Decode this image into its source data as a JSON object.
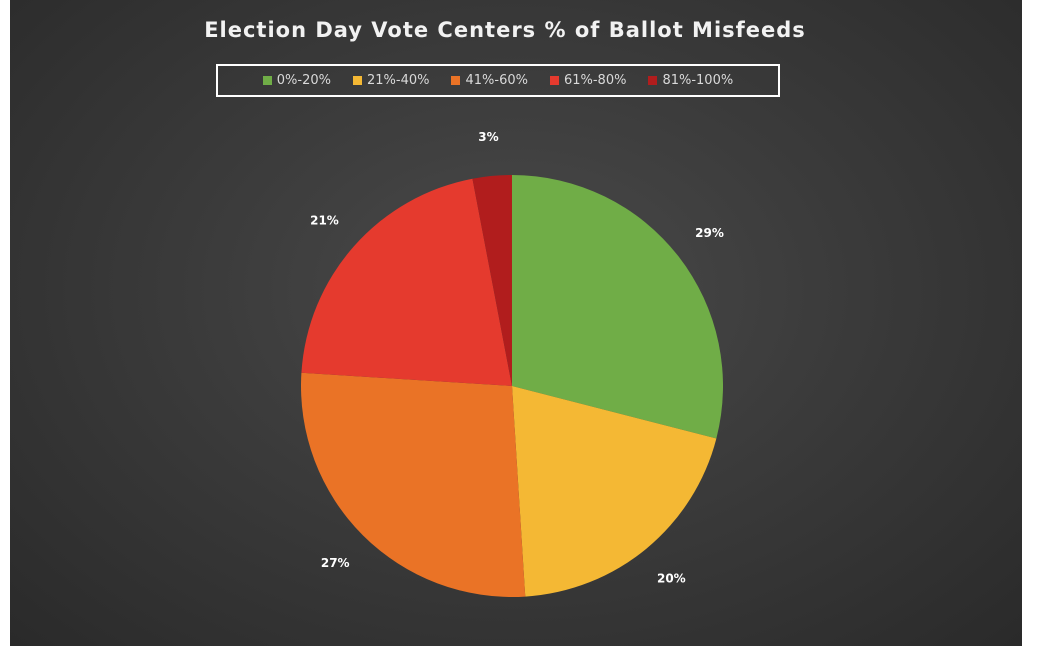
{
  "chart_data": {
    "type": "pie",
    "title": "Election Day Vote Centers % of Ballot Misfeeds",
    "legend_position": "top",
    "slices": [
      {
        "label": "0%-20%",
        "value": 29,
        "display": "29%",
        "color": "#70ad47"
      },
      {
        "label": "21%-40%",
        "value": 20,
        "display": "20%",
        "color": "#f4b834"
      },
      {
        "label": "41%-60%",
        "value": 27,
        "display": "27%",
        "color": "#ea7326"
      },
      {
        "label": "61%-80%",
        "value": 21,
        "display": "21%",
        "color": "#e53a2e"
      },
      {
        "label": "81%-100%",
        "value": 3,
        "display": "3%",
        "color": "#b11d1d"
      }
    ]
  }
}
